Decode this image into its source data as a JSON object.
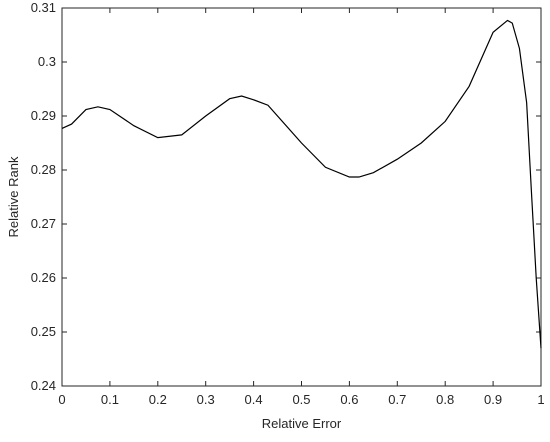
{
  "chart_data": {
    "type": "line",
    "xlabel": "Relative Error",
    "ylabel": "Relative Rank",
    "x": [
      0,
      0.02,
      0.05,
      0.075,
      0.1,
      0.15,
      0.2,
      0.25,
      0.3,
      0.35,
      0.375,
      0.4,
      0.43,
      0.5,
      0.55,
      0.6,
      0.62,
      0.65,
      0.7,
      0.75,
      0.8,
      0.85,
      0.9,
      0.93,
      0.94,
      0.955,
      0.97,
      0.98,
      0.99,
      1.0
    ],
    "series": [
      {
        "name": "Relative Rank",
        "color": "#000000",
        "values": [
          0.2877,
          0.2885,
          0.2912,
          0.2917,
          0.2912,
          0.2882,
          0.286,
          0.2865,
          0.29,
          0.2932,
          0.2937,
          0.293,
          0.292,
          0.285,
          0.2805,
          0.2787,
          0.2787,
          0.2795,
          0.282,
          0.285,
          0.289,
          0.2955,
          0.3055,
          0.3077,
          0.3072,
          0.3025,
          0.2925,
          0.276,
          0.26,
          0.247
        ]
      }
    ],
    "xlim": [
      0,
      1
    ],
    "xticks": [
      0,
      0.1,
      0.2,
      0.3,
      0.4,
      0.5,
      0.6,
      0.7,
      0.8,
      0.9,
      1
    ],
    "ylim": [
      0.24,
      0.31
    ],
    "yticks": [
      0.24,
      0.25,
      0.26,
      0.27,
      0.28,
      0.29,
      0.3,
      0.31
    ],
    "grid": false
  }
}
